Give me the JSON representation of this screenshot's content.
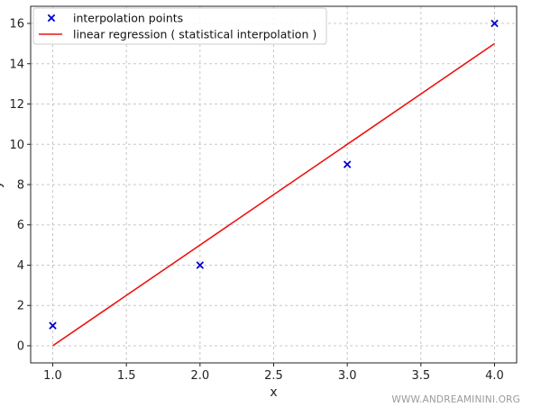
{
  "chart_data": {
    "type": "scatter",
    "title": "",
    "xlabel": "x",
    "ylabel": "y",
    "xlim": [
      0.85,
      4.15
    ],
    "ylim": [
      -0.85,
      16.85
    ],
    "xticks": [
      1.0,
      1.5,
      2.0,
      2.5,
      3.0,
      3.5,
      4.0
    ],
    "xtick_labels": [
      "1.0",
      "1.5",
      "2.0",
      "2.5",
      "3.0",
      "3.5",
      "4.0"
    ],
    "yticks": [
      0,
      2,
      4,
      6,
      8,
      10,
      12,
      14,
      16
    ],
    "ytick_labels": [
      "0",
      "2",
      "4",
      "6",
      "8",
      "10",
      "12",
      "14",
      "16"
    ],
    "grid": true,
    "legend_position": "top-left",
    "series": [
      {
        "name": "interpolation points",
        "kind": "scatter",
        "marker": "x",
        "color": "#0000cc",
        "x": [
          1,
          2,
          3,
          4
        ],
        "y": [
          1,
          4,
          9,
          16
        ]
      },
      {
        "name": "linear regression ( statistical interpolation )",
        "kind": "line",
        "color": "#ee1111",
        "x": [
          1,
          4
        ],
        "y": [
          0,
          15
        ]
      }
    ]
  },
  "watermark": "WWW.ANDREAMININI.ORG"
}
